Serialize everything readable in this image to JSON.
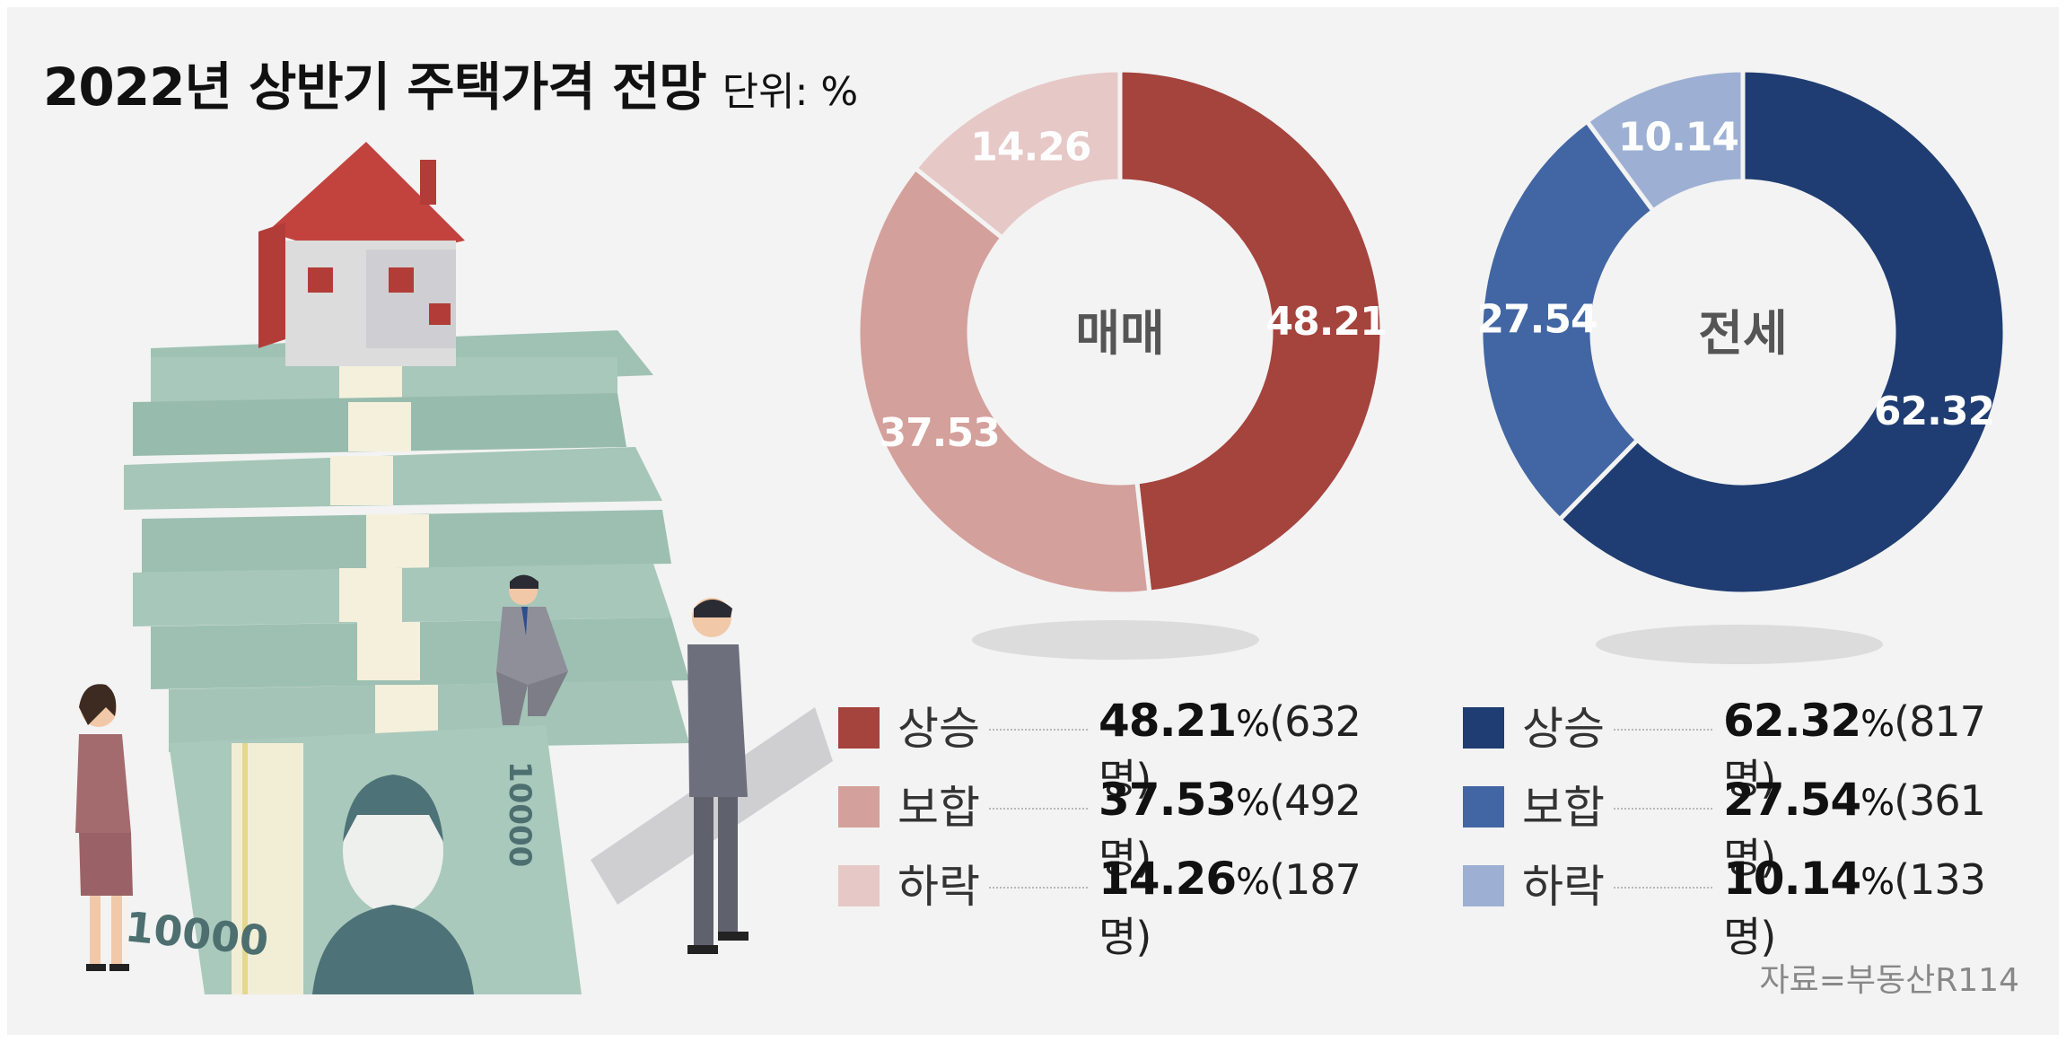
{
  "header": {
    "title": "2022년 상반기 주택가격 전망",
    "unit": "단위: %"
  },
  "illustration": {
    "banknote_label": "10000"
  },
  "source": "자료=부동산R114",
  "chart_data": [
    {
      "type": "donut",
      "center_label": "매매",
      "categories": [
        "상승",
        "보합",
        "하락"
      ],
      "values": [
        48.21,
        37.53,
        14.26
      ],
      "value_labels": [
        "48.21",
        "37.53",
        "14.26"
      ],
      "colors": [
        "#a5433d",
        "#d4a09b",
        "#e6c8c6"
      ],
      "legend": [
        {
          "label": "상승",
          "value": "48.21",
          "pct": "%",
          "count": "(632명)",
          "color": "#a5433d"
        },
        {
          "label": "보합",
          "value": "37.53",
          "pct": "%",
          "count": "(492명)",
          "color": "#d4a09b"
        },
        {
          "label": "하락",
          "value": "14.26",
          "pct": "%",
          "count": "(187명)",
          "color": "#e6c8c6"
        }
      ]
    },
    {
      "type": "donut",
      "center_label": "전세",
      "categories": [
        "상승",
        "보합",
        "하락"
      ],
      "values": [
        62.32,
        27.54,
        10.14
      ],
      "value_labels": [
        "62.32",
        "27.54",
        "10.14"
      ],
      "colors": [
        "#1f3d72",
        "#4266a3",
        "#9db0d4"
      ],
      "legend": [
        {
          "label": "상승",
          "value": "62.32",
          "pct": "%",
          "count": "(817명)",
          "color": "#1f3d72"
        },
        {
          "label": "보합",
          "value": "27.54",
          "pct": "%",
          "count": "(361명)",
          "color": "#4266a3"
        },
        {
          "label": "하락",
          "value": "10.14",
          "pct": "%",
          "count": "(133명)",
          "color": "#9db0d4"
        }
      ]
    }
  ]
}
